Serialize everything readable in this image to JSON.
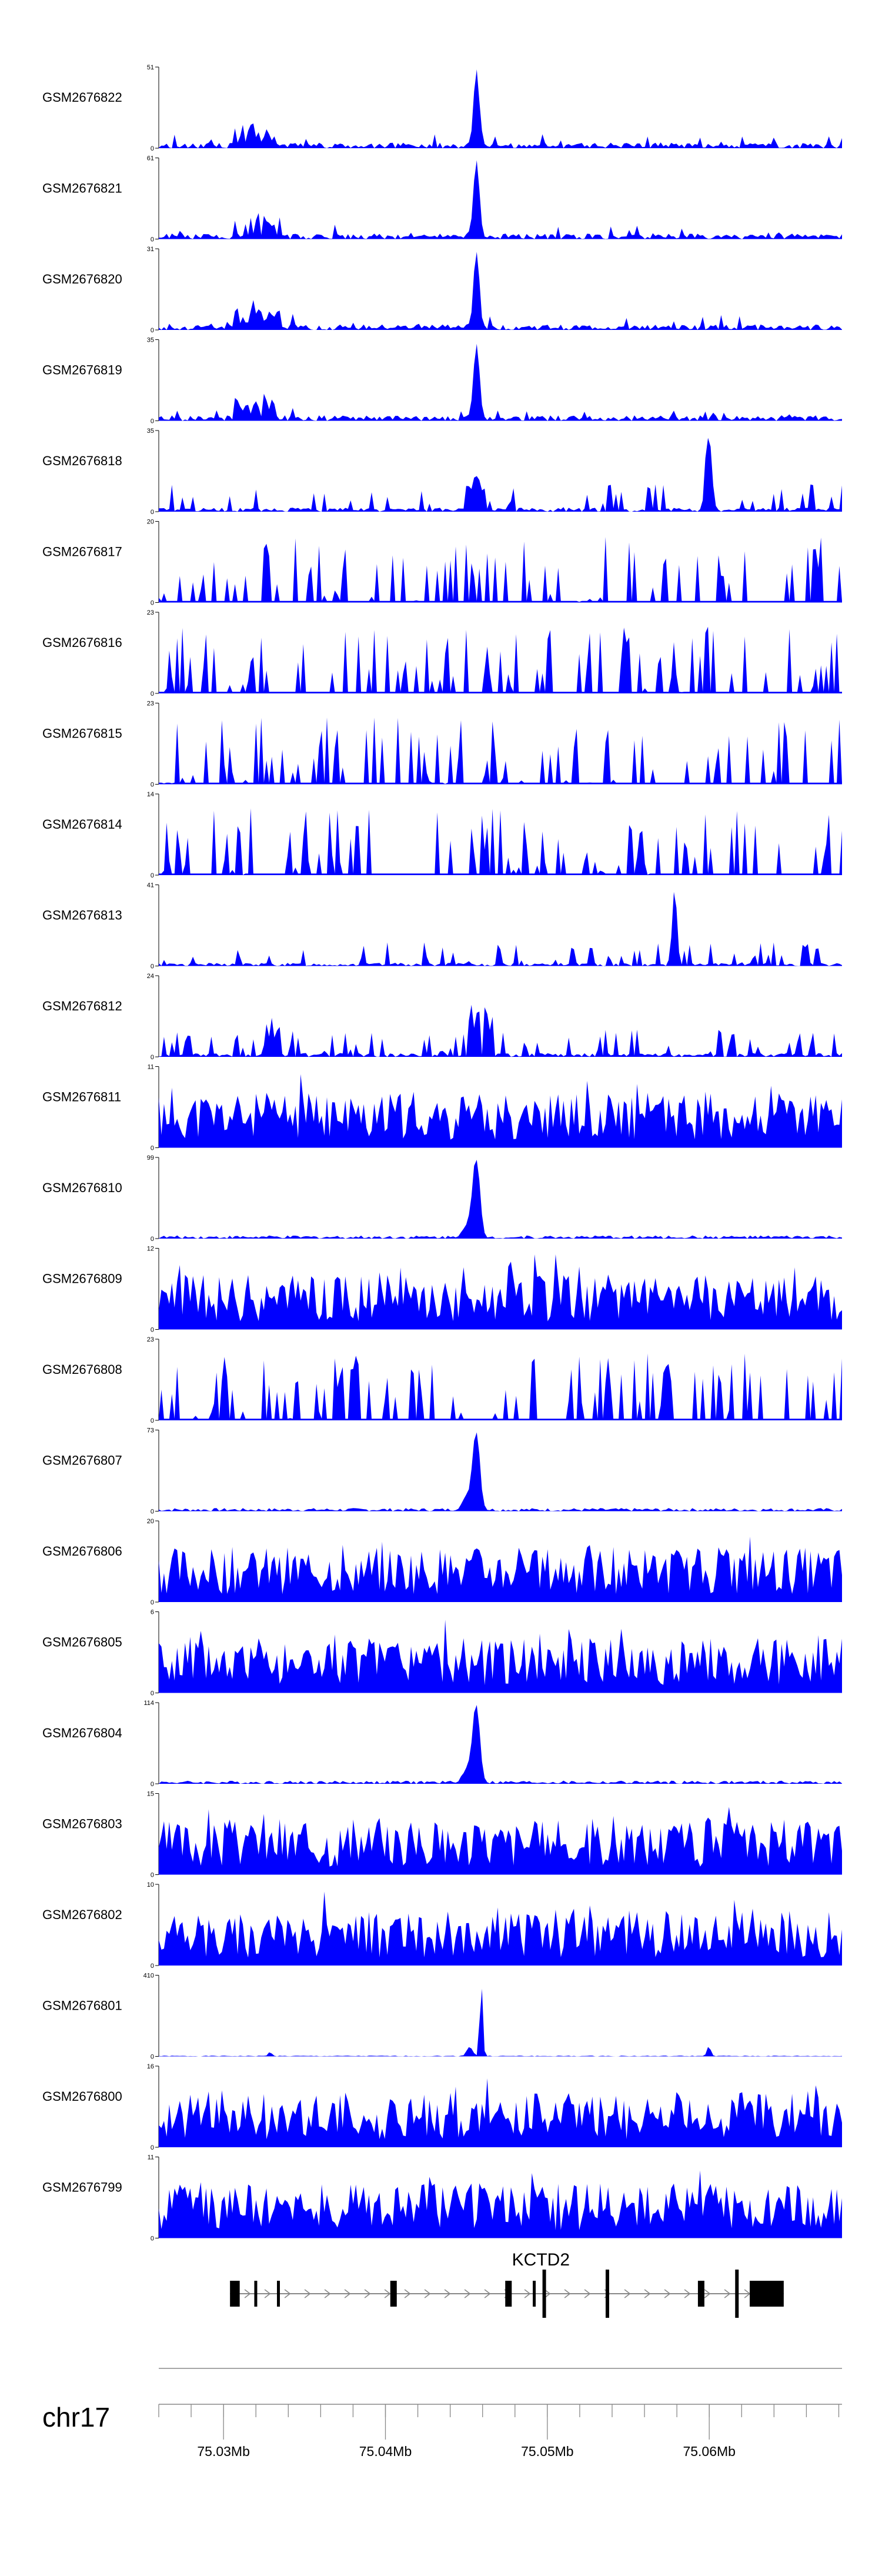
{
  "colors": {
    "signal": "#0000ff",
    "axis": "#000000",
    "gene": "#000000",
    "ruler": "#888888"
  },
  "chart_data": {
    "type": "area",
    "chromosome": "chr17",
    "xlim": [
      75026000,
      75068200
    ],
    "tracks": [
      {
        "name": "GSM2676822",
        "ymax": "51",
        "profile": "typeA",
        "seed": 22
      },
      {
        "name": "GSM2676821",
        "ymax": "61",
        "profile": "typeA",
        "seed": 21
      },
      {
        "name": "GSM2676820",
        "ymax": "31",
        "profile": "typeA",
        "seed": 20
      },
      {
        "name": "GSM2676819",
        "ymax": "35",
        "profile": "typeA",
        "seed": 19
      },
      {
        "name": "GSM2676818",
        "ymax": "35",
        "profile": "typeB",
        "seed": 18
      },
      {
        "name": "GSM2676817",
        "ymax": "20",
        "profile": "sparse",
        "seed": 17
      },
      {
        "name": "GSM2676816",
        "ymax": "23",
        "profile": "sparse",
        "seed": 16
      },
      {
        "name": "GSM2676815",
        "ymax": "23",
        "profile": "sparse",
        "seed": 15
      },
      {
        "name": "GSM2676814",
        "ymax": "14",
        "profile": "sparse",
        "seed": 14
      },
      {
        "name": "GSM2676813",
        "ymax": "41",
        "profile": "typeC",
        "seed": 13
      },
      {
        "name": "GSM2676812",
        "ymax": "24",
        "profile": "typeD",
        "seed": 12
      },
      {
        "name": "GSM2676811",
        "ymax": "11",
        "profile": "dense",
        "seed": 11
      },
      {
        "name": "GSM2676810",
        "ymax": "99",
        "profile": "peak",
        "seed": 10
      },
      {
        "name": "GSM2676809",
        "ymax": "12",
        "profile": "dense",
        "seed": 9
      },
      {
        "name": "GSM2676808",
        "ymax": "23",
        "profile": "sparse",
        "seed": 8
      },
      {
        "name": "GSM2676807",
        "ymax": "73",
        "profile": "peak",
        "seed": 7
      },
      {
        "name": "GSM2676806",
        "ymax": "20",
        "profile": "dense",
        "seed": 6
      },
      {
        "name": "GSM2676805",
        "ymax": "6",
        "profile": "dense",
        "seed": 5
      },
      {
        "name": "GSM2676804",
        "ymax": "114",
        "profile": "peak",
        "seed": 4
      },
      {
        "name": "GSM2676803",
        "ymax": "15",
        "profile": "dense",
        "seed": 3
      },
      {
        "name": "GSM2676802",
        "ymax": "10",
        "profile": "dense",
        "seed": 2
      },
      {
        "name": "GSM2676801",
        "ymax": "410",
        "profile": "sharp",
        "seed": 1
      },
      {
        "name": "GSM2676800",
        "ymax": "16",
        "profile": "dense",
        "seed": 100
      },
      {
        "name": "GSM2676799",
        "ymax": "11",
        "profile": "dense",
        "seed": 99
      }
    ],
    "y_zero_label": "0",
    "gene": {
      "name": "KCTD2",
      "start": 75030400,
      "end": 75064600,
      "exons": [
        {
          "start": 75030400,
          "end": 75031000,
          "type": "utr"
        },
        {
          "start": 75031900,
          "end": 75032050,
          "type": "thin"
        },
        {
          "start": 75033300,
          "end": 75033450,
          "type": "thin"
        },
        {
          "start": 75040300,
          "end": 75040700,
          "type": "utr"
        },
        {
          "start": 75047400,
          "end": 75047800,
          "type": "utr"
        },
        {
          "start": 75049100,
          "end": 75049200,
          "type": "thin"
        },
        {
          "start": 75049700,
          "end": 75049900,
          "type": "tall"
        },
        {
          "start": 75053600,
          "end": 75053750,
          "type": "tall"
        },
        {
          "start": 75059300,
          "end": 75059700,
          "type": "utr"
        },
        {
          "start": 75061600,
          "end": 75061750,
          "type": "tall"
        },
        {
          "start": 75062500,
          "end": 75064600,
          "type": "utr"
        }
      ]
    },
    "ruler": {
      "major_ticks": [
        75030000,
        75040000,
        75050000,
        75060000
      ],
      "major_labels": [
        "75.03Mb",
        "75.04Mb",
        "75.05Mb",
        "75.06Mb"
      ],
      "minor_step": 2000
    }
  }
}
